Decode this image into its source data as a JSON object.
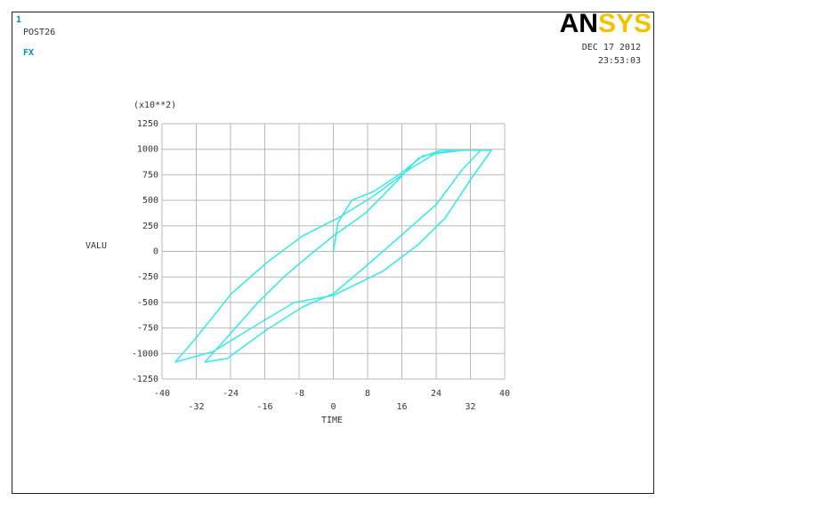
{
  "chart_data": {
    "type": "line",
    "x_label": "TIME",
    "y_label": "VALU",
    "y_multiplier": "(x10**2)",
    "xlim": [
      -40,
      40
    ],
    "ylim": [
      -1250,
      1250
    ],
    "xticks": [
      -40,
      -32,
      -24,
      -16,
      -8,
      0,
      8,
      16,
      24,
      32,
      40
    ],
    "yticks": [
      1250,
      1000,
      750,
      500,
      250,
      0,
      -250,
      -500,
      -750,
      -1000,
      -1250
    ],
    "grid": true,
    "x": [
      0,
      1.1,
      4.3,
      9.5,
      15.7,
      20.9,
      25.0,
      30.2,
      34.4,
      30.2,
      24.0,
      15.7,
      7.4,
      0,
      -7.2,
      -15.4,
      -24.8,
      -30.0,
      -25.9,
      -17.6,
      -11.3,
      -5.1,
      0,
      7.4,
      13.6,
      19.8,
      25.0,
      36.9,
      32.3,
      26.1,
      19.8,
      11.5,
      0,
      -9.2,
      -19.6,
      -28.0,
      -36.9,
      -32.1,
      -23.8,
      -15.5,
      -7.2,
      1.1,
      9.5,
      17.8,
      24.0,
      29.2
    ],
    "series": [
      {
        "name": "FX",
        "color": "#3ee8e4",
        "values": [
          0,
          283,
          501,
          588,
          762,
          936,
          963,
          989,
          989,
          806,
          457,
          152,
          -153,
          -414,
          -544,
          -762,
          -1049,
          -1084,
          -893,
          -501,
          -240,
          -22,
          152,
          370,
          632,
          910,
          989,
          989,
          719,
          327,
          65,
          -196,
          -431,
          -501,
          -762,
          -980,
          -1084,
          -849,
          -414,
          -109,
          152,
          327,
          544,
          806,
          963,
          989
        ]
      }
    ]
  },
  "header": {
    "window": "1",
    "program": "POST26",
    "logo": "ANSYS",
    "date": "DEC 17 2012",
    "time": "23:53:03"
  }
}
